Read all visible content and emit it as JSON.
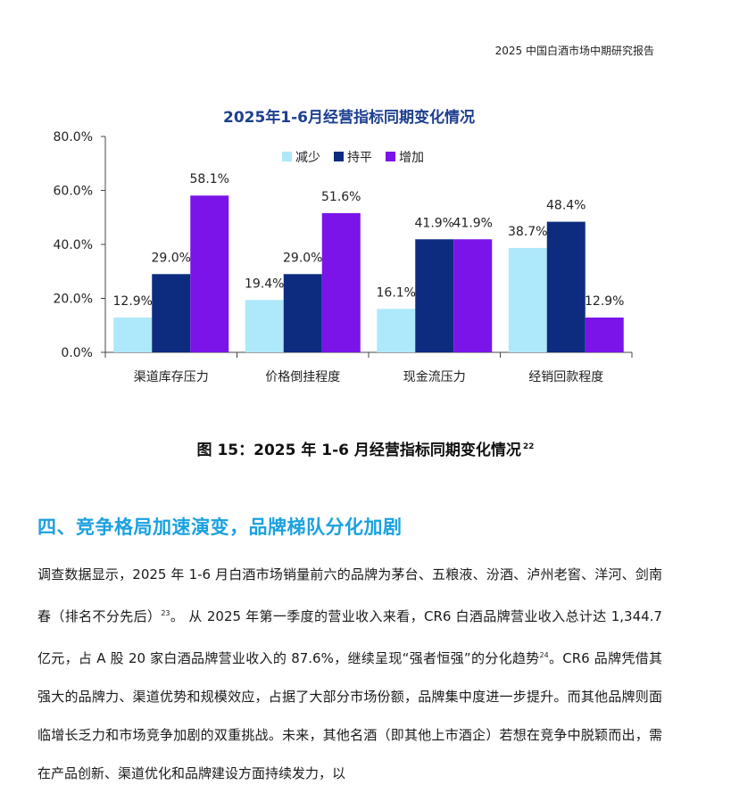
{
  "header": {
    "title": "2025 中国白酒市场中期研究报告"
  },
  "chart_data": {
    "type": "bar",
    "title": "2025年1-6月经营指标同期变化情况",
    "categories": [
      "渠道库存压力",
      "价格倒挂程度",
      "现金流压力",
      "经销回款程度"
    ],
    "series": [
      {
        "name": "减少",
        "color": "#aee8fb",
        "values": [
          12.9,
          19.4,
          16.1,
          38.7
        ]
      },
      {
        "name": "持平",
        "color": "#0d2c80",
        "values": [
          29.0,
          29.0,
          41.9,
          48.4
        ]
      },
      {
        "name": "增加",
        "color": "#7a14e8",
        "values": [
          58.1,
          51.6,
          41.9,
          12.9
        ]
      }
    ],
    "ylim": [
      0,
      80
    ],
    "yticks": [
      "0.0%",
      "20.0%",
      "40.0%",
      "60.0%",
      "80.0%"
    ],
    "data_labels": [
      [
        "12.9%",
        "19.4%",
        "16.1%",
        "38.7%"
      ],
      [
        "29.0%",
        "29.0%",
        "41.9%",
        "48.4%"
      ],
      [
        "58.1%",
        "51.6%",
        "41.9%",
        "12.9%"
      ]
    ],
    "title_color": "#1d3f8f",
    "legend": "top-center",
    "grid": false
  },
  "caption": {
    "text": "图 15：2025 年 1-6 月经营指标同期变化情况",
    "ref": "22"
  },
  "section": {
    "title": "四、竞争格局加速演变，品牌梯队分化加剧"
  },
  "paragraph": {
    "p1": "调查数据显示，2025 年 1-6 月白酒市场销量前六的品牌为茅台、五粮液、汾酒、泸州老窖、洋河、剑南春（排名不分先后）",
    "ref1": "23",
    "p2": "。 从 2025 年第一季度的营业收入来看，CR6 白酒品牌营业收入总计达 1,344.7 亿元，占 A 股 20 家白酒品牌营业收入的 87.6%，继续呈现“强者恒强”的分化趋势",
    "ref2": "24",
    "p3": "。CR6 品牌凭借其强大的品牌力、渠道优势和规模效应，占据了大部分市场份额，品牌集中度进一步提升。而其他品牌则面临增长乏力和市场竞争加剧的双重挑战。未来，其他名酒（即其他上市酒企）若想在竞争中脱颖而出，需在产品创新、渠道优化和品牌建设方面持续发力，以"
  }
}
